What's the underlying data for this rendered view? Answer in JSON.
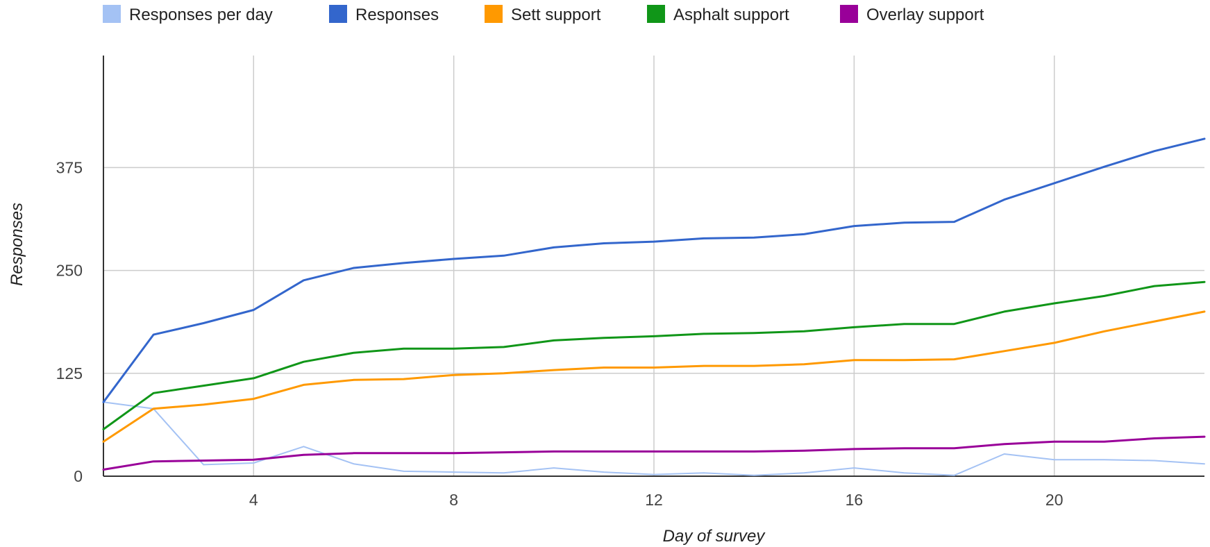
{
  "chart_data": {
    "type": "line",
    "xlabel": "Day of survey",
    "ylabel": "Responses",
    "xlim": [
      1,
      23
    ],
    "ylim": [
      0,
      410
    ],
    "x_ticks": [
      4,
      8,
      12,
      16,
      20
    ],
    "y_ticks": [
      0,
      125,
      250,
      375
    ],
    "grid": true,
    "legend_position": "top",
    "x": [
      1,
      2,
      3,
      4,
      5,
      6,
      7,
      8,
      9,
      10,
      11,
      12,
      13,
      14,
      15,
      16,
      17,
      18,
      19,
      20,
      21,
      22,
      23
    ],
    "series": [
      {
        "name": "Responses per day",
        "color": "#a4c2f4",
        "values": [
          90,
          82,
          14,
          16,
          36,
          15,
          6,
          5,
          4,
          10,
          5,
          2,
          4,
          1,
          4,
          10,
          4,
          1,
          27,
          20,
          20,
          19,
          15
        ]
      },
      {
        "name": "Responses",
        "color": "#3366cc",
        "values": [
          90,
          172,
          186,
          202,
          238,
          253,
          259,
          264,
          268,
          278,
          283,
          285,
          289,
          290,
          294,
          304,
          308,
          309,
          336,
          356,
          376,
          395,
          410
        ]
      },
      {
        "name": "Sett support",
        "color": "#ff9900",
        "values": [
          42,
          82,
          87,
          94,
          111,
          117,
          118,
          123,
          125,
          129,
          132,
          132,
          134,
          134,
          136,
          141,
          141,
          142,
          152,
          162,
          176,
          188,
          200
        ]
      },
      {
        "name": "Asphalt support",
        "color": "#109618",
        "values": [
          57,
          101,
          110,
          119,
          139,
          150,
          155,
          155,
          157,
          165,
          168,
          170,
          173,
          174,
          176,
          181,
          185,
          185,
          200,
          210,
          219,
          231,
          236
        ]
      },
      {
        "name": "Overlay support",
        "color": "#990099",
        "values": [
          8,
          18,
          19,
          20,
          26,
          28,
          28,
          28,
          29,
          30,
          30,
          30,
          30,
          30,
          31,
          33,
          34,
          34,
          39,
          42,
          42,
          46,
          48
        ]
      }
    ]
  }
}
